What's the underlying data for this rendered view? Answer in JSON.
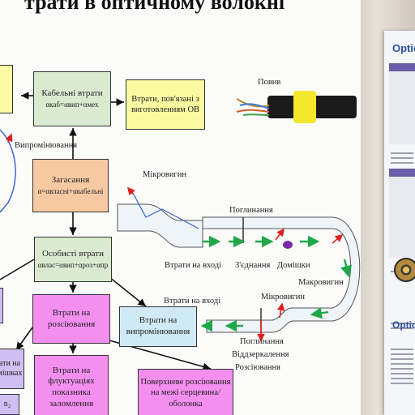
{
  "title": "трати в оптичному волокні",
  "boxes": {
    "cable_losses": {
      "label": "Кабельні втрати",
      "formula": "αкаб=αвип+αмех"
    },
    "manufacturing_losses": {
      "label": "Втрати, пов'язані з виготовленням ОВ"
    },
    "attenuation": {
      "label": "Загасання",
      "formula": "α=αвласні+αкабельні"
    },
    "intrinsic_losses": {
      "label": "Особисті втрати",
      "formula": "αвлас=αвип+αроз+αпр"
    },
    "scattering_losses": {
      "label": "Втрати на розсіювання"
    },
    "radiation_losses": {
      "label": "Втрати на випромінювання"
    },
    "fluctuation_losses": {
      "label": "Втрати на флуктуаціях показника заломлення"
    },
    "surface_scattering": {
      "label": "Поверхневе розсіювання на межі серцевина/оболонка"
    },
    "left_partial_a": {
      "label": "ати на мішках"
    },
    "left_partial_b": {
      "label": "n₂"
    }
  },
  "labels": {
    "radiation": "Випромінювання",
    "coating": "Повив",
    "microbend_top": "Мікровигин",
    "absorption_top": "Поглинання",
    "input_loss_top": "Втрати на вході",
    "joint": "З'єднання",
    "impurities": "Домішки",
    "macrobend": "Макровигин",
    "microbend_bottom": "Мікровигин",
    "input_loss_bottom": "Втрати на вході",
    "absorption_bottom": "Поглинання",
    "reflection": "Віддзеркалення",
    "scattering": "Розсіювання"
  },
  "side": {
    "title": "Optical",
    "title2": "Optical"
  },
  "colors": {
    "arrow_green": "#1fa84a",
    "arrow_red": "#e02020",
    "arrow_blue": "#3060d0",
    "impurity": "#7a2aa8"
  }
}
